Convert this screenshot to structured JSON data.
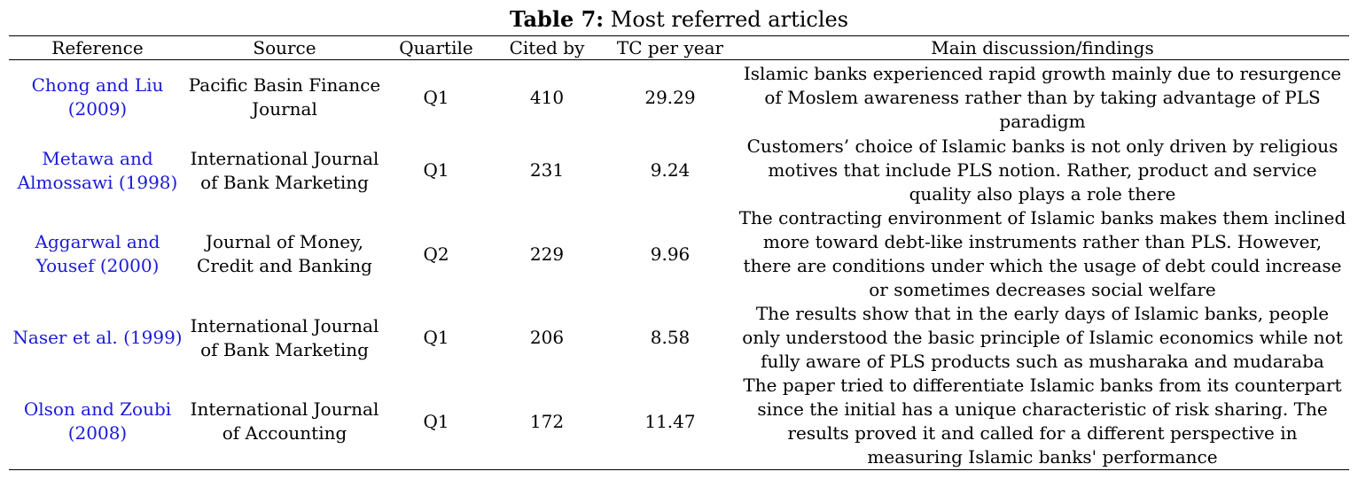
{
  "caption": {
    "label": "Table 7:",
    "title": "Most referred articles"
  },
  "headers": {
    "reference": "Reference",
    "source": "Source",
    "quartile": "Quartile",
    "cited_by": "Cited by",
    "tc_per_year": "TC per year",
    "main": "Main discussion/findings"
  },
  "rows": [
    {
      "reference": "Chong and Liu (2009)",
      "source": "Pacific Basin Finance Journal",
      "quartile": "Q1",
      "cited_by": "410",
      "tc_per_year": "29.29",
      "main": "Islamic banks experienced rapid growth mainly due to resurgence of Moslem awareness rather than by taking advantage of PLS paradigm"
    },
    {
      "reference": "Metawa and Almossawi (1998)",
      "source": "International Journal of Bank Marketing",
      "quartile": "Q1",
      "cited_by": "231",
      "tc_per_year": "9.24",
      "main": "Customers’ choice of Islamic banks is not only driven by religious motives that include PLS notion. Rather, product and service quality also plays a role there"
    },
    {
      "reference": "Aggarwal and Yousef (2000)",
      "source": "Journal of Money, Credit and Banking",
      "quartile": "Q2",
      "cited_by": "229",
      "tc_per_year": "9.96",
      "main": "The contracting environment of Islamic banks makes them inclined more toward debt-like instruments rather than PLS. However, there are conditions under which the usage of debt could increase or sometimes decreases social welfare"
    },
    {
      "reference": "Naser et al. (1999)",
      "source": "International Journal of Bank Marketing",
      "quartile": "Q1",
      "cited_by": "206",
      "tc_per_year": "8.58",
      "main": "The results show that in the early days of Islamic banks, people only understood the basic principle of Islamic economics while not fully aware of PLS products such as musharaka and mudaraba"
    },
    {
      "reference": "Olson and Zoubi (2008)",
      "source": "International Journal of Accounting",
      "quartile": "Q1",
      "cited_by": "172",
      "tc_per_year": "11.47",
      "main": "The paper tried to differentiate Islamic banks from its counterpart since the initial has a unique characteristic of risk sharing. The results proved it and called for a different perspective in measuring Islamic banks' performance"
    }
  ]
}
